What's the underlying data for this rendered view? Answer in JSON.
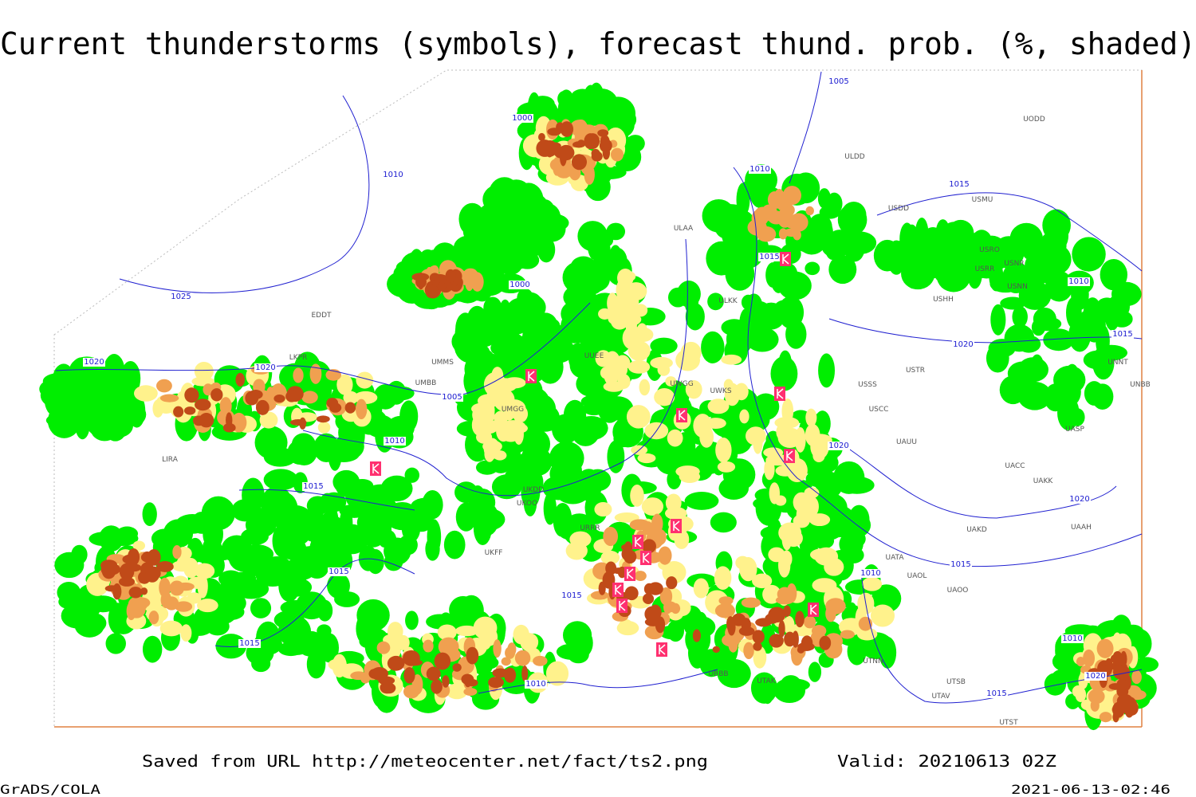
{
  "title": "Current thunderstorms (symbols), forecast thund. prob. (%, shaded)",
  "footer": {
    "source": "Saved from URL http://meteocenter.net/fact/ts2.png",
    "valid": "Valid: 20210613 02Z",
    "software": "GrADS/COLA",
    "timestamp": "2021-06-13-02:46"
  },
  "map": {
    "isobar_labels": [
      "1005",
      "1000",
      "1010",
      "1010",
      "1015",
      "1025",
      "1000",
      "1015",
      "1010",
      "1020",
      "1020",
      "1005",
      "1010",
      "1020",
      "1015",
      "1020",
      "1015",
      "1020",
      "1015",
      "1015",
      "1010",
      "1015",
      "1015",
      "1010",
      "1010",
      "1020",
      "1015"
    ],
    "stations": [
      "UODD",
      "ULDD",
      "USDD",
      "USMU",
      "USRO",
      "USNR",
      "USRR",
      "USNN",
      "USHH",
      "ULAA",
      "ULKK",
      "LKPR",
      "EDDT",
      "UMMS",
      "UMBB",
      "UMGG",
      "UUEE",
      "UWGG",
      "UWKS",
      "USSS",
      "USTR",
      "USCC",
      "UAUU",
      "UKDD",
      "UKOO",
      "URRR",
      "UKFF",
      "UATA",
      "UAOL",
      "UAOO",
      "UACC",
      "UAKK",
      "UASP",
      "UAKD",
      "UAAH",
      "UNNT",
      "UNBB",
      "UTNN",
      "UTAK",
      "UBBB",
      "UTSB",
      "UTAV",
      "UTST",
      "LIRA"
    ]
  }
}
